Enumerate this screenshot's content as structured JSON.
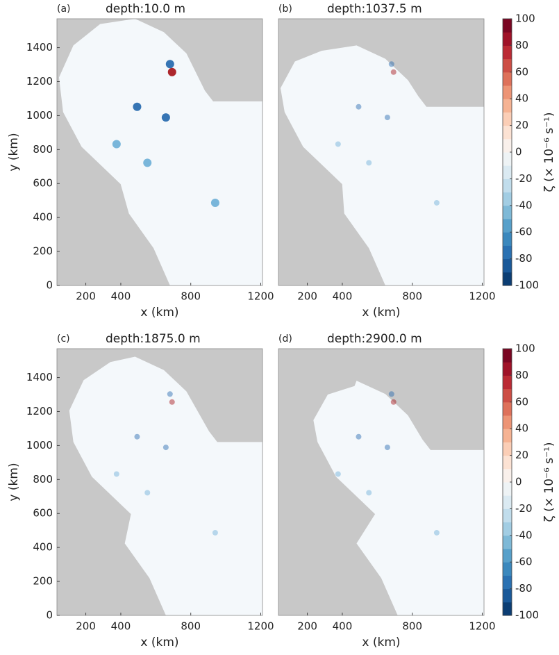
{
  "chart_data": [
    {
      "type": "heatmap",
      "label": "(a)",
      "title": "depth:10.0 m",
      "x_label": "x (km)",
      "y_label": "y (km)",
      "xlim": [
        35,
        1210
      ],
      "ylim": [
        0,
        1570
      ],
      "xticks": [
        200,
        400,
        800,
        1200
      ],
      "yticks": [
        0,
        200,
        400,
        600,
        800,
        1000,
        1200,
        1400
      ]
    },
    {
      "type": "heatmap",
      "label": "(b)",
      "title": "depth:1037.5 m",
      "x_label": "x (km)",
      "xlim": [
        35,
        1210
      ],
      "ylim": [
        0,
        1570
      ],
      "xticks": [
        200,
        400,
        800,
        1200
      ],
      "colorbar": {
        "label": "ζ (× 10⁻⁶ s⁻¹)",
        "colormap": "RdBu_r",
        "lim": [
          -100,
          100
        ],
        "ticks": [
          -100,
          -80,
          -60,
          -40,
          -20,
          0,
          20,
          40,
          60,
          80,
          100
        ]
      }
    },
    {
      "type": "heatmap",
      "label": "(c)",
      "title": "depth:1875.0 m",
      "x_label": "x (km)",
      "y_label": "y (km)",
      "xlim": [
        35,
        1210
      ],
      "ylim": [
        0,
        1570
      ],
      "xticks": [
        200,
        400,
        800,
        1200
      ],
      "yticks": [
        0,
        200,
        400,
        600,
        800,
        1000,
        1200,
        1400
      ]
    },
    {
      "type": "heatmap",
      "label": "(d)",
      "title": "depth:2900.0 m",
      "x_label": "x (km)",
      "xlim": [
        35,
        1210
      ],
      "ylim": [
        0,
        1570
      ],
      "xticks": [
        200,
        400,
        800,
        1200
      ],
      "colorbar": {
        "label": "ζ (× 10⁻⁶ s⁻¹)",
        "colormap": "RdBu_r",
        "lim": [
          -100,
          100
        ],
        "ticks": [
          -100,
          -80,
          -60,
          -40,
          -20,
          0,
          20,
          40,
          60,
          80,
          100
        ]
      }
    }
  ]
}
